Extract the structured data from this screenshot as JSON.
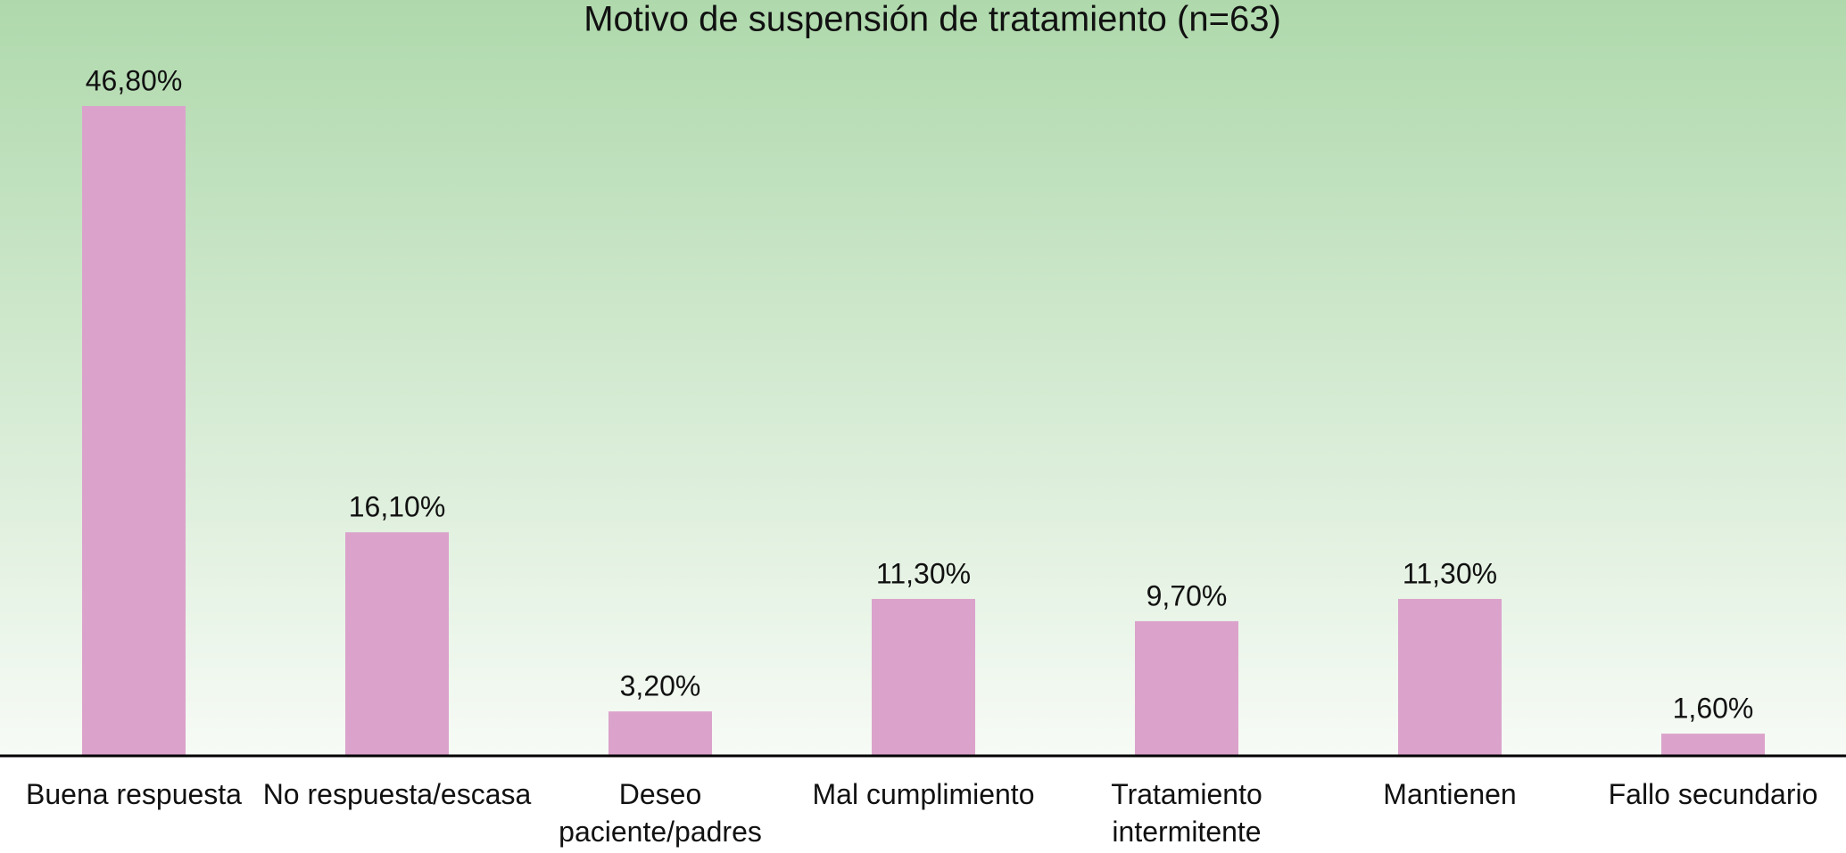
{
  "chart_data": {
    "type": "bar",
    "title": "Motivo de suspensión de tratamiento (n=63)",
    "categories": [
      "Buena respuesta",
      "No respuesta/escasa",
      "Deseo paciente/padres",
      "Mal cumplimiento",
      "Tratamiento intermitente",
      "Mantienen",
      "Fallo secundario"
    ],
    "values": [
      46.8,
      16.1,
      3.2,
      11.3,
      9.7,
      11.3,
      1.6
    ],
    "value_labels": [
      "46,80%",
      "16,10%",
      "3,20%",
      "11,30%",
      "9,70%",
      "11,30%",
      "1,60%"
    ],
    "color": "#dba3cb"
  }
}
